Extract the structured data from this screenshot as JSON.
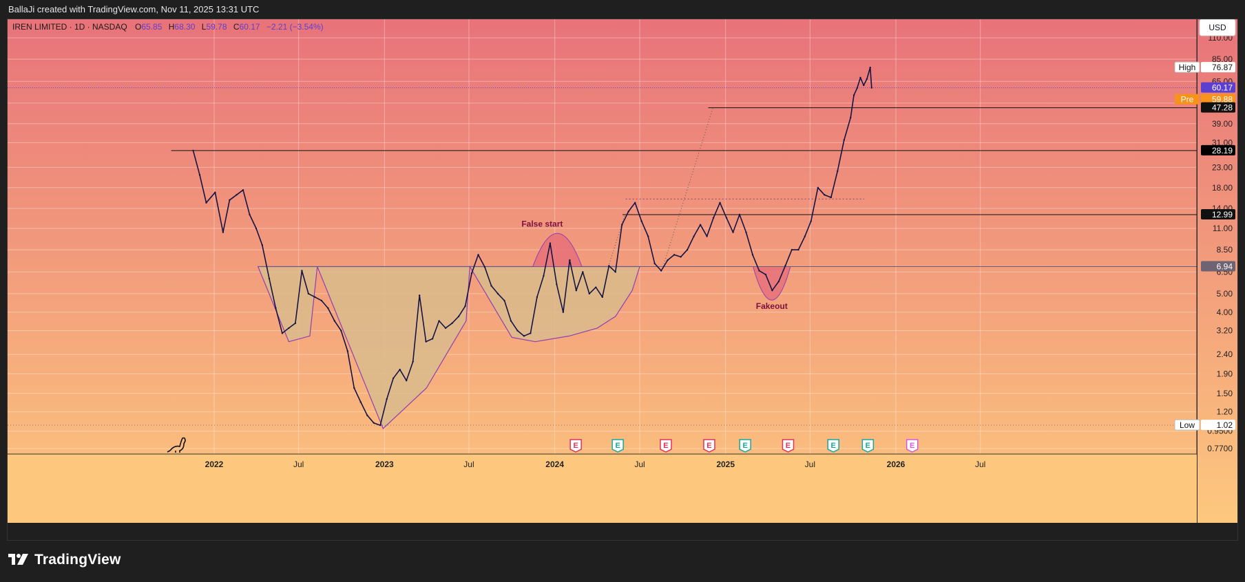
{
  "header": {
    "attribution": "BallaJi created with TradingView.com, Nov 11, 2025 13:31 UTC"
  },
  "legend": {
    "symbol": "IREN LIMITED · 1D · NASDAQ",
    "o_label": "O",
    "o_value": "65.85",
    "h_label": "H",
    "h_value": "68.30",
    "l_label": "L",
    "l_value": "59.78",
    "c_label": "C",
    "c_value": "60.17",
    "change": "−2.21 (−3.54%)"
  },
  "currency_button": "USD",
  "footer": {
    "brand": "TradingView"
  },
  "colors": {
    "bg_top": "#e8737a",
    "bg_bottom": "#fdc87e",
    "candle": "#131344",
    "pattern_fill": "#d9bb8c",
    "pattern_line": "#8e3fb0",
    "accent_purple": "#5b3fd1",
    "pre_orange": "#f7931a",
    "earnings_red": "#e0335a",
    "earnings_teal": "#16a89b"
  },
  "chart_data": {
    "type": "line",
    "subtype": "candlestick (simplified to daily path)",
    "title": "IREN LIMITED · 1D · NASDAQ",
    "y_scale": "log",
    "ylim": [
      0.7,
      130
    ],
    "y_ticks": [
      "110.00",
      "85.00",
      "65.00",
      "50.00",
      "39.00",
      "31.00",
      "23.00",
      "18.00",
      "14.00",
      "11.00",
      "8.50",
      "6.50",
      "5.00",
      "4.00",
      "3.20",
      "2.40",
      "1.90",
      "1.50",
      "1.20",
      "0.9500",
      "0.7700"
    ],
    "x_ticks": [
      "2022",
      "Jul",
      "2023",
      "Jul",
      "2024",
      "Jul",
      "2025",
      "Jul",
      "2026",
      "Jul"
    ],
    "series": [
      {
        "x": [
          "2021-11-17",
          "2021-12-01",
          "2021-12-15",
          "2022-01-03",
          "2022-01-20",
          "2022-02-03",
          "2022-02-18",
          "2022-03-04",
          "2022-03-18",
          "2022-04-01",
          "2022-04-14",
          "2022-04-29",
          "2022-05-13",
          "2022-05-27",
          "2022-06-10",
          "2022-06-24",
          "2022-07-08",
          "2022-07-22",
          "2022-08-05",
          "2022-08-19",
          "2022-09-02",
          "2022-09-16",
          "2022-09-30",
          "2022-10-14",
          "2022-10-28",
          "2022-11-11",
          "2022-11-25",
          "2022-12-09",
          "2022-12-23",
          "2023-01-06",
          "2023-01-20",
          "2023-02-03",
          "2023-02-17",
          "2023-03-03",
          "2023-03-17",
          "2023-03-31",
          "2023-04-14",
          "2023-04-28",
          "2023-05-12",
          "2023-05-26",
          "2023-06-09",
          "2023-06-23",
          "2023-07-07",
          "2023-07-21",
          "2023-08-04",
          "2023-08-18",
          "2023-09-01",
          "2023-09-15",
          "2023-09-29",
          "2023-10-13",
          "2023-10-27",
          "2023-11-10",
          "2023-11-24",
          "2023-12-08",
          "2023-12-22",
          "2024-01-05",
          "2024-01-19",
          "2024-02-02",
          "2024-02-16",
          "2024-03-01",
          "2024-03-15",
          "2024-03-29",
          "2024-04-12",
          "2024-04-26",
          "2024-05-10",
          "2024-05-24",
          "2024-06-07",
          "2024-06-21",
          "2024-07-05",
          "2024-07-19",
          "2024-08-02",
          "2024-08-16",
          "2024-08-30",
          "2024-09-13",
          "2024-09-27",
          "2024-10-11",
          "2024-10-25",
          "2024-11-08",
          "2024-11-22",
          "2024-12-06",
          "2024-12-20",
          "2025-01-03",
          "2025-01-17",
          "2025-01-31",
          "2025-02-14",
          "2025-02-28",
          "2025-03-14",
          "2025-03-28",
          "2025-04-11",
          "2025-04-25",
          "2025-05-09",
          "2025-05-23",
          "2025-06-06",
          "2025-06-20",
          "2025-07-03",
          "2025-07-18",
          "2025-08-01",
          "2025-08-15",
          "2025-08-29",
          "2025-09-12",
          "2025-09-26",
          "2025-10-03",
          "2025-10-10",
          "2025-10-17",
          "2025-10-24",
          "2025-10-31",
          "2025-11-07",
          "2025-11-10"
        ],
        "y": [
          28.19,
          21.0,
          15.0,
          17.0,
          10.5,
          15.5,
          16.5,
          17.5,
          13.0,
          11.0,
          9.0,
          6.0,
          4.2,
          3.1,
          3.3,
          3.5,
          6.6,
          5.0,
          4.8,
          4.6,
          4.2,
          3.6,
          3.2,
          2.5,
          1.6,
          1.35,
          1.15,
          1.05,
          1.02,
          1.4,
          1.8,
          2.0,
          1.75,
          2.2,
          4.9,
          2.8,
          2.9,
          3.6,
          3.3,
          3.5,
          3.8,
          4.3,
          6.4,
          8.0,
          6.9,
          5.5,
          5.0,
          4.6,
          3.6,
          3.2,
          3.0,
          3.1,
          4.8,
          6.2,
          9.2,
          5.6,
          4.0,
          7.5,
          5.2,
          6.5,
          5.0,
          5.4,
          4.8,
          7.0,
          6.5,
          11.5,
          13.5,
          15.0,
          12.0,
          10.0,
          7.2,
          6.6,
          7.5,
          8.0,
          7.8,
          8.5,
          10.0,
          11.5,
          10.0,
          12.5,
          15.0,
          12.5,
          10.5,
          13.0,
          10.5,
          8.0,
          6.6,
          6.3,
          5.2,
          5.8,
          7.0,
          8.5,
          8.5,
          10.0,
          12.0,
          18.0,
          16.5,
          16.0,
          22.0,
          32.0,
          42.0,
          55.0,
          60.0,
          68.0,
          62.0,
          67.0,
          76.87,
          60.17
        ]
      }
    ],
    "price_labels": [
      {
        "label": "High",
        "value": "76.87"
      },
      {
        "label": "",
        "value": "60.17"
      },
      {
        "label": "Pre",
        "value": "59.88"
      },
      {
        "label": "",
        "value": "47.28"
      },
      {
        "label": "",
        "value": "28.19"
      },
      {
        "label": "",
        "value": "12.99"
      },
      {
        "label": "",
        "value": "6.94"
      },
      {
        "label": "Low",
        "value": "1.02"
      }
    ],
    "horizontal_levels": [
      47.28,
      28.19,
      15.7,
      12.99,
      6.94
    ],
    "annotations": [
      {
        "text": "False start",
        "date": "2023-12-05",
        "price": 9.5
      },
      {
        "text": "Fakeout",
        "date": "2025-04-10",
        "price": 5.0
      }
    ],
    "earnings_markers": [
      {
        "date": "2024-02-15",
        "label": "E",
        "color": "red"
      },
      {
        "date": "2024-05-15",
        "label": "E",
        "color": "teal"
      },
      {
        "date": "2024-08-26",
        "label": "E",
        "color": "red"
      },
      {
        "date": "2024-11-27",
        "label": "E",
        "color": "red"
      },
      {
        "date": "2025-02-12",
        "label": "E",
        "color": "teal"
      },
      {
        "date": "2025-05-15",
        "label": "E",
        "color": "red"
      },
      {
        "date": "2025-08-20",
        "label": "E",
        "color": "teal"
      },
      {
        "date": "2025-11-02",
        "label": "E",
        "color": "teal"
      },
      {
        "date": "2026-02-05",
        "label": "E",
        "color": "pink"
      }
    ],
    "grid": true,
    "legend_position": "top-left"
  }
}
